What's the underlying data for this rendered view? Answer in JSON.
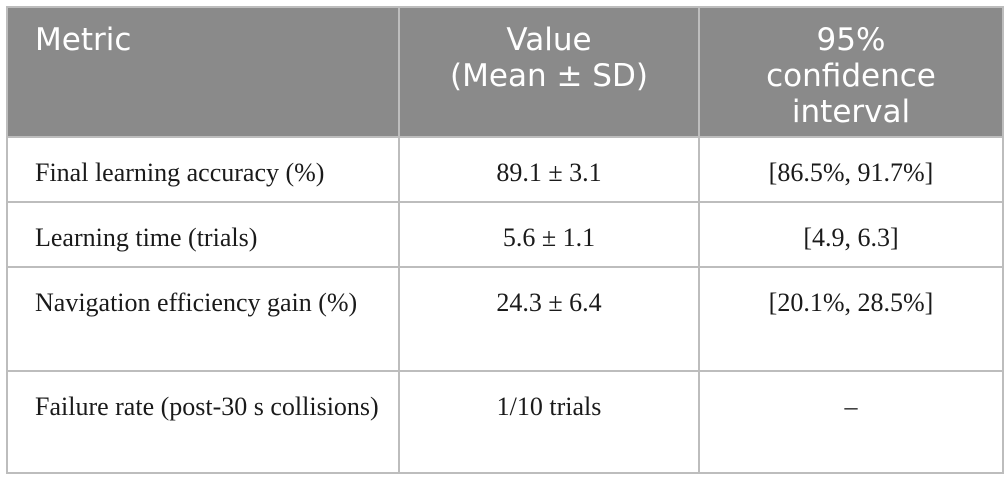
{
  "table": {
    "headers": [
      {
        "lines": [
          "Metric"
        ]
      },
      {
        "lines": [
          "Value",
          "(Mean ± SD)"
        ]
      },
      {
        "lines": [
          "95%",
          "confidence",
          "interval"
        ]
      }
    ],
    "rows": [
      {
        "metric": "Final learning accuracy (%)",
        "value": "89.1 ± 3.1",
        "ci": "[86.5%, 91.7%]"
      },
      {
        "metric": "Learning time (trials)",
        "value": "5.6 ± 1.1",
        "ci": "[4.9, 6.3]"
      },
      {
        "metric": "Navigation efficiency gain (%)",
        "value": "24.3 ± 6.4",
        "ci": "[20.1%, 28.5%]"
      },
      {
        "metric": "Failure rate (post-30 s collisions)",
        "value": "1/10 trials",
        "ci": "–"
      }
    ]
  }
}
